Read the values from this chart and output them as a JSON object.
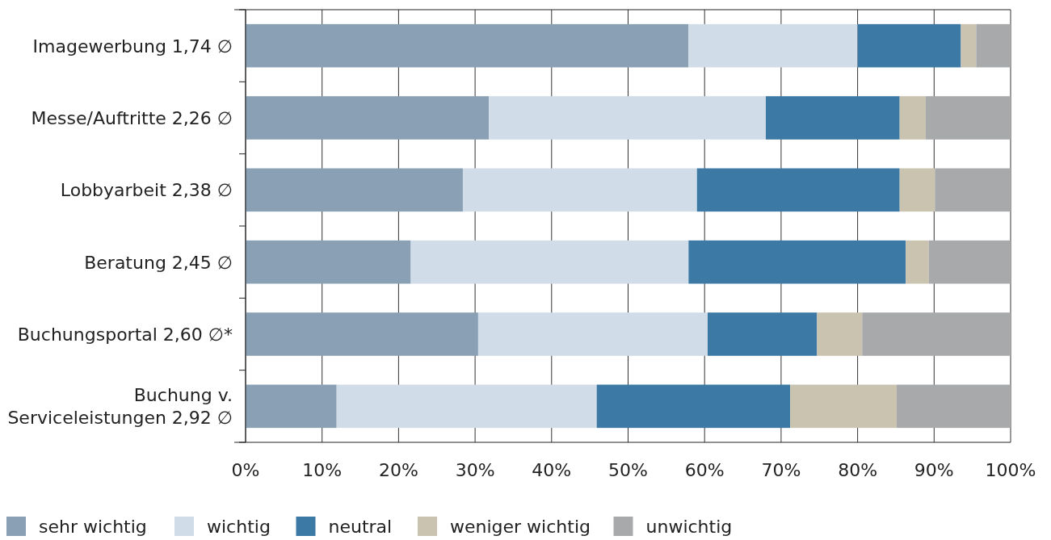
{
  "chart_data": {
    "type": "bar",
    "orientation": "horizontal",
    "stacked": true,
    "categories": [
      "Imagewerbung 1,74 ∅",
      "Messe/Auftritte 2,26 ∅",
      "Lobbyarbeit 2,38 ∅",
      "Beratung 2,45 ∅",
      "Buchungsportal 2,60 ∅*",
      "Buchung v.\nServiceleistungen 2,92 ∅"
    ],
    "series": [
      {
        "name": "sehr wichtig",
        "color": "#8aa1b5",
        "values": [
          57.9,
          31.8,
          28.4,
          21.6,
          30.4,
          11.9
        ]
      },
      {
        "name": "wichtig",
        "color": "#d0dde9",
        "values": [
          22.1,
          36.2,
          30.6,
          36.3,
          30.0,
          34.0
        ]
      },
      {
        "name": "neutral",
        "color": "#3d79a5",
        "values": [
          13.5,
          17.5,
          26.5,
          28.4,
          14.3,
          25.3
        ]
      },
      {
        "name": "weniger wichtig",
        "color": "#cac3b0",
        "values": [
          2.0,
          3.4,
          4.6,
          3.0,
          5.9,
          13.9
        ]
      },
      {
        "name": "unwichtig",
        "color": "#a8a9ab",
        "values": [
          4.5,
          11.1,
          9.9,
          10.7,
          19.4,
          14.9
        ]
      }
    ],
    "xlim": [
      0,
      100
    ],
    "xticks": [
      {
        "value": 0,
        "label": "0%"
      },
      {
        "value": 10,
        "label": "10%"
      },
      {
        "value": 20,
        "label": "20%"
      },
      {
        "value": 30,
        "label": "30%"
      },
      {
        "value": 40,
        "label": "40%"
      },
      {
        "value": 50,
        "label": "50%"
      },
      {
        "value": 60,
        "label": "60%"
      },
      {
        "value": 70,
        "label": "70%"
      },
      {
        "value": 80,
        "label": "80%"
      },
      {
        "value": 90,
        "label": "90%"
      },
      {
        "value": 100,
        "label": "100%"
      }
    ],
    "grid": "x",
    "legend": "bottom"
  }
}
